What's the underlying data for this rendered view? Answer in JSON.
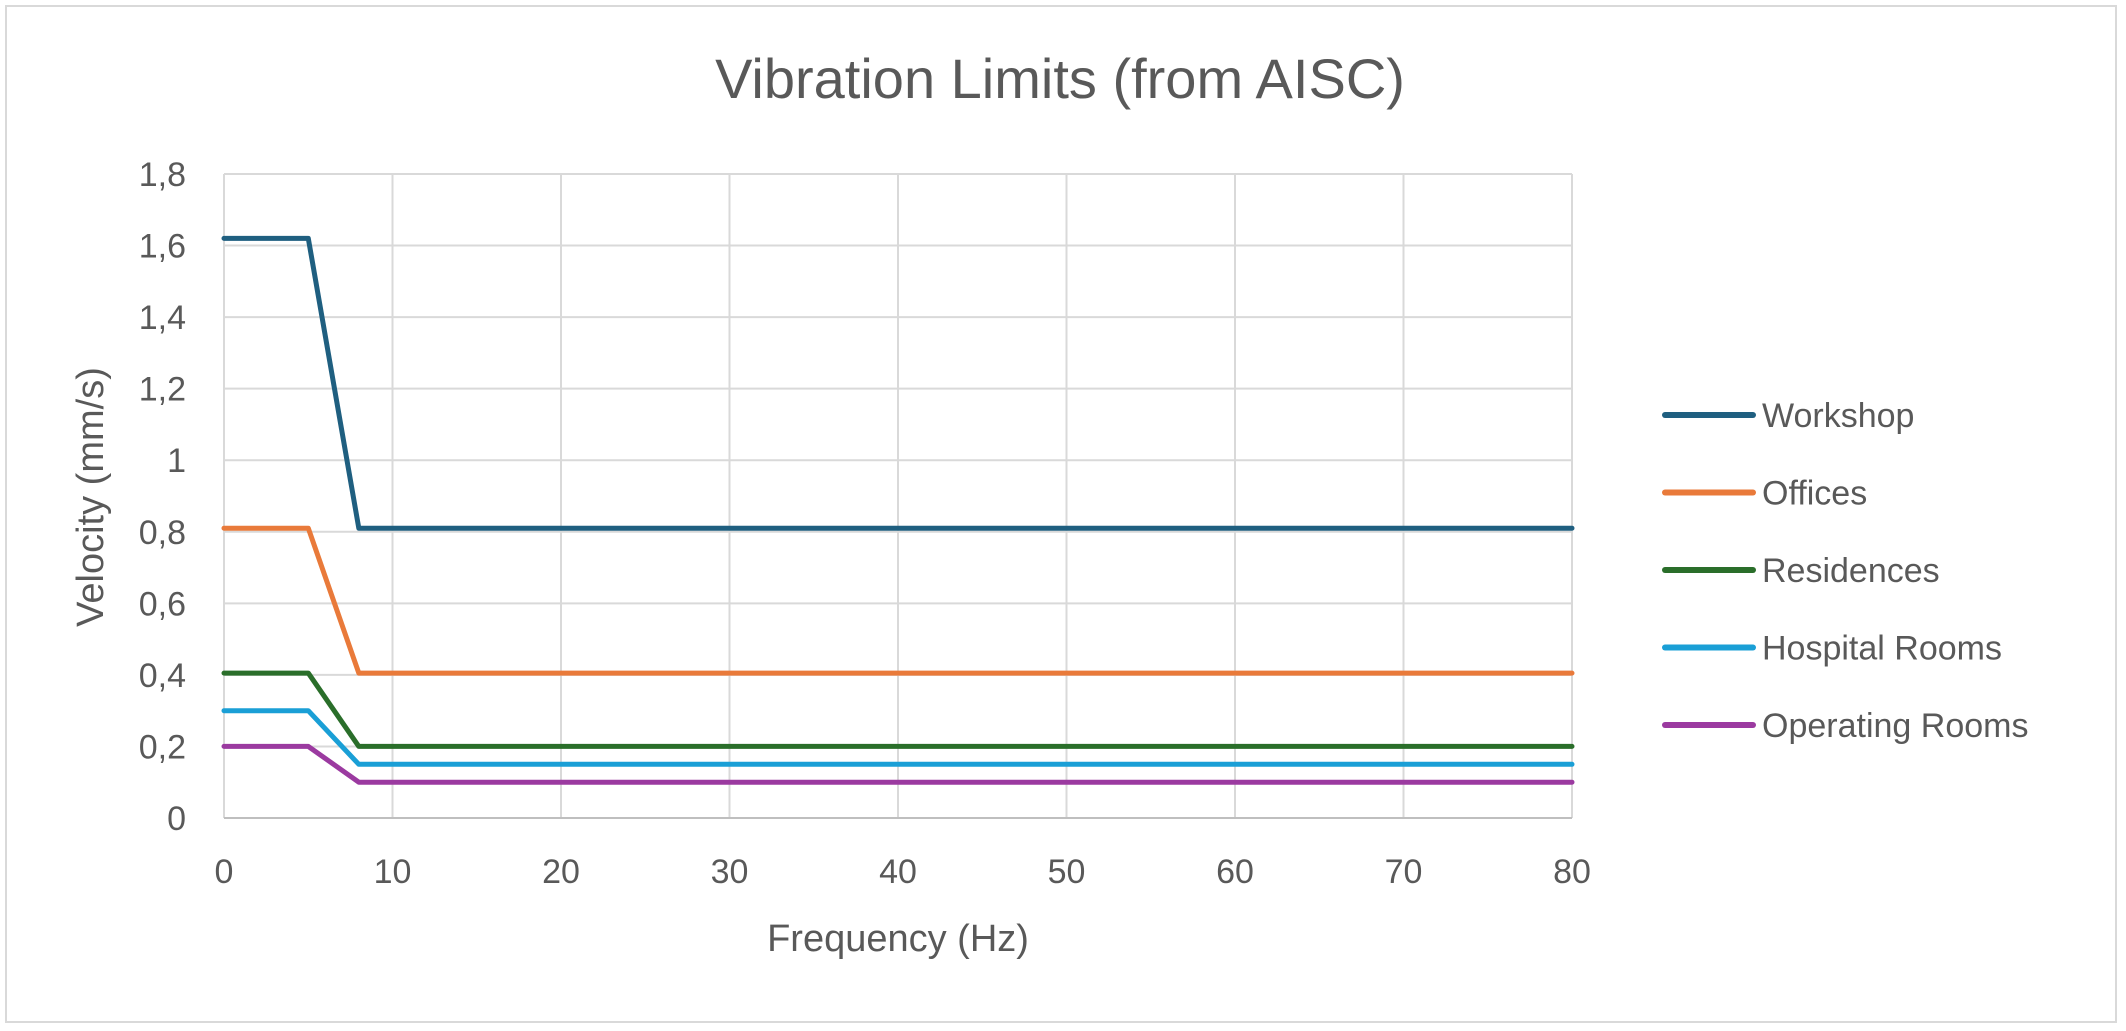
{
  "chart_data": {
    "type": "line",
    "title": "Vibration Limits (from AISC)",
    "xlabel": "Frequency (Hz)",
    "ylabel": "Velocity (mm/s)",
    "xlim": [
      0,
      80
    ],
    "ylim": [
      0,
      1.8
    ],
    "x_ticks": [
      0,
      10,
      20,
      30,
      40,
      50,
      60,
      70,
      80
    ],
    "x_tick_labels": [
      "0",
      "10",
      "20",
      "30",
      "40",
      "50",
      "60",
      "70",
      "80"
    ],
    "y_ticks": [
      0,
      0.2,
      0.4,
      0.6,
      0.8,
      1.0,
      1.2,
      1.4,
      1.6,
      1.8
    ],
    "y_tick_labels": [
      "0",
      "0,2",
      "0,4",
      "0,6",
      "0,8",
      "1",
      "1,2",
      "1,4",
      "1,6",
      "1,8"
    ],
    "grid": true,
    "legend_position": "right",
    "series": [
      {
        "name": "Workshop",
        "color": "#1f5f80",
        "x": [
          0,
          5,
          8,
          80
        ],
        "values": [
          1.62,
          1.62,
          0.81,
          0.81
        ]
      },
      {
        "name": "Offices",
        "color": "#e97a3a",
        "x": [
          0,
          5,
          8,
          80
        ],
        "values": [
          0.81,
          0.81,
          0.405,
          0.405
        ]
      },
      {
        "name": "Residences",
        "color": "#2a6e2a",
        "x": [
          0,
          5,
          8,
          80
        ],
        "values": [
          0.405,
          0.405,
          0.2,
          0.2
        ]
      },
      {
        "name": "Hospital Rooms",
        "color": "#1a9fd6",
        "x": [
          0,
          5,
          8,
          80
        ],
        "values": [
          0.3,
          0.3,
          0.15,
          0.15
        ]
      },
      {
        "name": "Operating Rooms",
        "color": "#9b3aa0",
        "x": [
          0,
          5,
          8,
          80
        ],
        "values": [
          0.2,
          0.2,
          0.1,
          0.1
        ]
      }
    ]
  }
}
